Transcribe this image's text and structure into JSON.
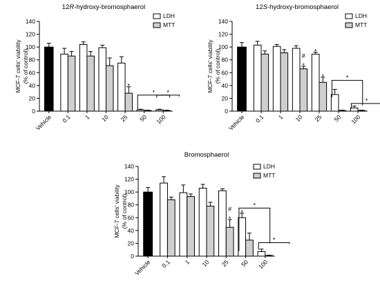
{
  "chart_data": [
    {
      "type": "bar",
      "title": "12R-hydroxy-bromosphaerol",
      "title_parts": [
        "12",
        "R",
        "-hydroxy-bromosphaerol"
      ],
      "ylabel_line1": "MCF-7 cells' viability",
      "ylabel_line2": "(% of control)",
      "ylim": [
        0,
        140
      ],
      "yticks": [
        0,
        20,
        40,
        60,
        80,
        100,
        120,
        140
      ],
      "ytick_labels": [
        "0",
        "20",
        "40",
        "60",
        "80",
        "100",
        "120",
        "140"
      ],
      "categories": [
        "Vehicle",
        "0.1",
        "1",
        "10",
        "25",
        "50",
        "100"
      ],
      "legend": [
        "LDH",
        "MTT"
      ],
      "legend_position": "top-right",
      "vehicle": {
        "value": 100,
        "error": 6
      },
      "series": [
        {
          "name": "LDH",
          "values": [
            null,
            89,
            104,
            99,
            75,
            2,
            2
          ],
          "errors": [
            null,
            9,
            4,
            4,
            10,
            1,
            1
          ]
        },
        {
          "name": "MTT",
          "values": [
            null,
            86,
            86,
            71,
            28,
            1,
            1
          ],
          "errors": [
            null,
            7,
            7,
            12,
            10,
            0.5,
            0.5
          ]
        }
      ],
      "annotations": [
        {
          "cat": 4,
          "series": 1,
          "text": "*"
        }
      ],
      "brackets": [
        {
          "from": 5,
          "to": 6,
          "y": 25,
          "left_drop": 3,
          "right_drop": 21,
          "text": "*"
        },
        {
          "from": 6,
          "to": 6.5,
          "y": 25,
          "left_drop": 21,
          "right_drop": 23,
          "text": "*"
        }
      ]
    },
    {
      "type": "bar",
      "title": "12S-hydroxy-bromosphaerol",
      "title_parts": [
        "12",
        "S",
        "-hydroxy-bromosphaerol"
      ],
      "ylabel_line1": "MCF-7 cells' viability",
      "ylabel_line2": "(% of control)",
      "ylim": [
        0,
        140
      ],
      "yticks": [
        0,
        20,
        40,
        60,
        80,
        100,
        120,
        140
      ],
      "ytick_labels": [
        "0",
        "20",
        "40",
        "60",
        "80",
        "100",
        "120",
        "140"
      ],
      "categories": [
        "Vehicle",
        "0.1",
        "1",
        "10",
        "25",
        "50",
        "100"
      ],
      "legend": [
        "LDH",
        "MTT"
      ],
      "legend_position": "top-right",
      "vehicle": {
        "value": 100,
        "error": 7
      },
      "series": [
        {
          "name": "LDH",
          "values": [
            null,
            103,
            101,
            98,
            89,
            26,
            5
          ],
          "errors": [
            null,
            6,
            3,
            4,
            3,
            8,
            3
          ]
        },
        {
          "name": "MTT",
          "values": [
            null,
            89,
            91,
            66,
            45,
            1,
            1
          ],
          "errors": [
            null,
            5,
            5,
            4,
            8,
            0.5,
            0.5
          ]
        }
      ],
      "annotations": [
        {
          "cat": 3,
          "series": 1,
          "text": "*"
        },
        {
          "cat": 3,
          "series": 1,
          "text": "#",
          "offset": 1
        },
        {
          "cat": 4,
          "series": 0,
          "text": "*"
        },
        {
          "cat": 4,
          "series": 1,
          "text": "*"
        }
      ],
      "brackets": [
        {
          "from": 5,
          "to": 5.9,
          "y": 48,
          "left_drop": 22,
          "right_drop": 9,
          "text": "*"
        },
        {
          "from": 6,
          "to": 6.9,
          "y": 12,
          "left_drop": 4,
          "right_drop": 4,
          "text": "*"
        }
      ]
    },
    {
      "type": "bar",
      "title": "Bromosphaerol",
      "title_parts": [
        "",
        "",
        "Bromosphaerol"
      ],
      "ylabel_line1": "MCF-7 cells' viability",
      "ylabel_line2": "(% of control)",
      "ylim": [
        0,
        140
      ],
      "yticks": [
        0,
        20,
        40,
        60,
        80,
        100,
        120,
        140
      ],
      "ytick_labels": [
        "0",
        "20",
        "40",
        "60",
        "80",
        "100",
        "120",
        "140"
      ],
      "categories": [
        "Vehicle",
        "0.1",
        "1",
        "10",
        "25",
        "50",
        "100"
      ],
      "legend": [
        "LDH",
        "MTT"
      ],
      "legend_position": "top-right",
      "vehicle": {
        "value": 100,
        "error": 7
      },
      "series": [
        {
          "name": "LDH",
          "values": [
            null,
            114,
            99,
            106,
            102,
            60,
            7
          ],
          "errors": [
            null,
            10,
            12,
            6,
            3,
            7,
            4
          ]
        },
        {
          "name": "MTT",
          "values": [
            null,
            88,
            93,
            78,
            45,
            25,
            1
          ],
          "errors": [
            null,
            4,
            4,
            6,
            12,
            11,
            0.5
          ]
        }
      ],
      "annotations": [
        {
          "cat": 4,
          "series": 1,
          "text": "*"
        },
        {
          "cat": 4,
          "series": 1,
          "text": "#",
          "offset": 1
        },
        {
          "cat": 5,
          "series": 0,
          "text": "*"
        }
      ],
      "brackets": [
        {
          "from": 5,
          "to": 5.9,
          "y": 75,
          "left_drop": 8,
          "right_drop": 20,
          "text": "*"
        },
        {
          "from": 6,
          "to": 6.9,
          "y": 21,
          "left_drop": 10,
          "right_drop": 19,
          "text": "*"
        }
      ]
    }
  ]
}
